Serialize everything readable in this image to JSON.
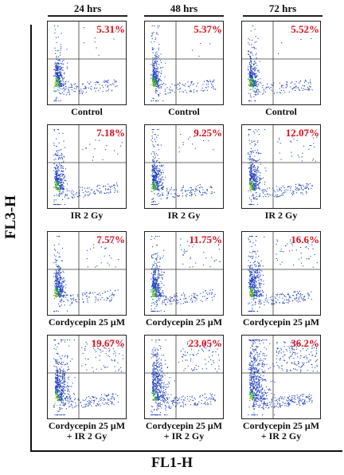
{
  "figure": {
    "time_points": [
      "24 hrs",
      "48 hrs",
      "72 hrs"
    ],
    "y_axis_label": "FL3-H",
    "x_axis_label": "FL1-H",
    "conditions": [
      {
        "line1": "Control",
        "line2": ""
      },
      {
        "line1": "IR 2 Gy",
        "line2": ""
      },
      {
        "line1": "Cordycepin 25 μM",
        "line2": ""
      },
      {
        "line1": "Cordycepin 25 μM",
        "line2": "+ IR 2 Gy"
      }
    ],
    "colors": {
      "percentage": "#e0101b",
      "dots_primary": "#1f3fbf",
      "dots_core": "#1aa83a",
      "dots_hot": "#e8c51a",
      "quadrant_lines": "#3a3a3a"
    }
  },
  "chart_data": {
    "type": "scatter",
    "subtype": "flow-cytometry quadrant dot plots (3 columns × 4 rows)",
    "xlabel": "FL1-H",
    "ylabel": "FL3-H",
    "columns": [
      "24 hrs",
      "48 hrs",
      "72 hrs"
    ],
    "rows": [
      "Control",
      "IR 2 Gy",
      "Cordycepin 25 μM",
      "Cordycepin 25 μM + IR 2 Gy"
    ],
    "upper_right_percent": [
      [
        5.31,
        5.37,
        5.52
      ],
      [
        7.18,
        9.25,
        12.07
      ],
      [
        7.57,
        11.75,
        16.6
      ],
      [
        19.67,
        23.05,
        36.2
      ]
    ],
    "percent_labels": [
      [
        "5.31%",
        "5.37%",
        "5.52%"
      ],
      [
        "7.18%",
        "9.25%",
        "12.07%"
      ],
      [
        "7.57%",
        "11.75%",
        "16.6%"
      ],
      [
        "19.67%",
        "23.05%",
        "36.2%"
      ]
    ]
  }
}
